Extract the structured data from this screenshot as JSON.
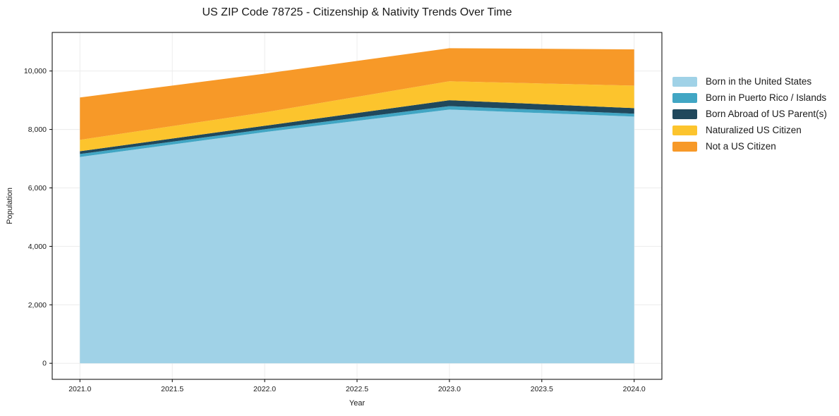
{
  "figure": {
    "title": "US ZIP Code 78725 - Citizenship & Nativity Trends Over Time",
    "xlabel": "Year",
    "ylabel": "Population"
  },
  "chart_data": {
    "type": "area",
    "stacked": true,
    "title": "US ZIP Code 78725 - Citizenship & Nativity Trends Over Time",
    "xlabel": "Year",
    "ylabel": "Population",
    "x": [
      2021,
      2022,
      2023,
      2024
    ],
    "series": [
      {
        "name": "Born in the United States",
        "color": "#a0d2e7",
        "values": [
          7060,
          7910,
          8680,
          8440
        ]
      },
      {
        "name": "Born in Puerto Rico / Islands",
        "color": "#41a6c4",
        "values": [
          100,
          95,
          120,
          100
        ]
      },
      {
        "name": "Born Abroad of US Parent(s)",
        "color": "#20485c",
        "values": [
          95,
          120,
          200,
          190
        ]
      },
      {
        "name": "Naturalized US Citizen",
        "color": "#fcc42d",
        "values": [
          390,
          460,
          650,
          770
        ]
      },
      {
        "name": "Not a US Citizen",
        "color": "#f79928",
        "values": [
          1450,
          1325,
          1130,
          1240
        ]
      }
    ],
    "stacked_totals": [
      9095,
      9910,
      10780,
      10740
    ],
    "xlim": [
      2020.85,
      2024.15
    ],
    "ylim": [
      -550,
      11320
    ],
    "xticks": [
      2021.0,
      2021.5,
      2022.0,
      2022.5,
      2023.0,
      2023.5,
      2024.0
    ],
    "yticks": [
      0,
      2000,
      4000,
      6000,
      8000,
      10000
    ],
    "grid": true,
    "legend_position": "right"
  },
  "style": {
    "background": "#ffffff",
    "grid_color": "#ececec",
    "spine_color": "#000000",
    "tick_color": "#000000",
    "text_color": "#1a1a1a"
  }
}
